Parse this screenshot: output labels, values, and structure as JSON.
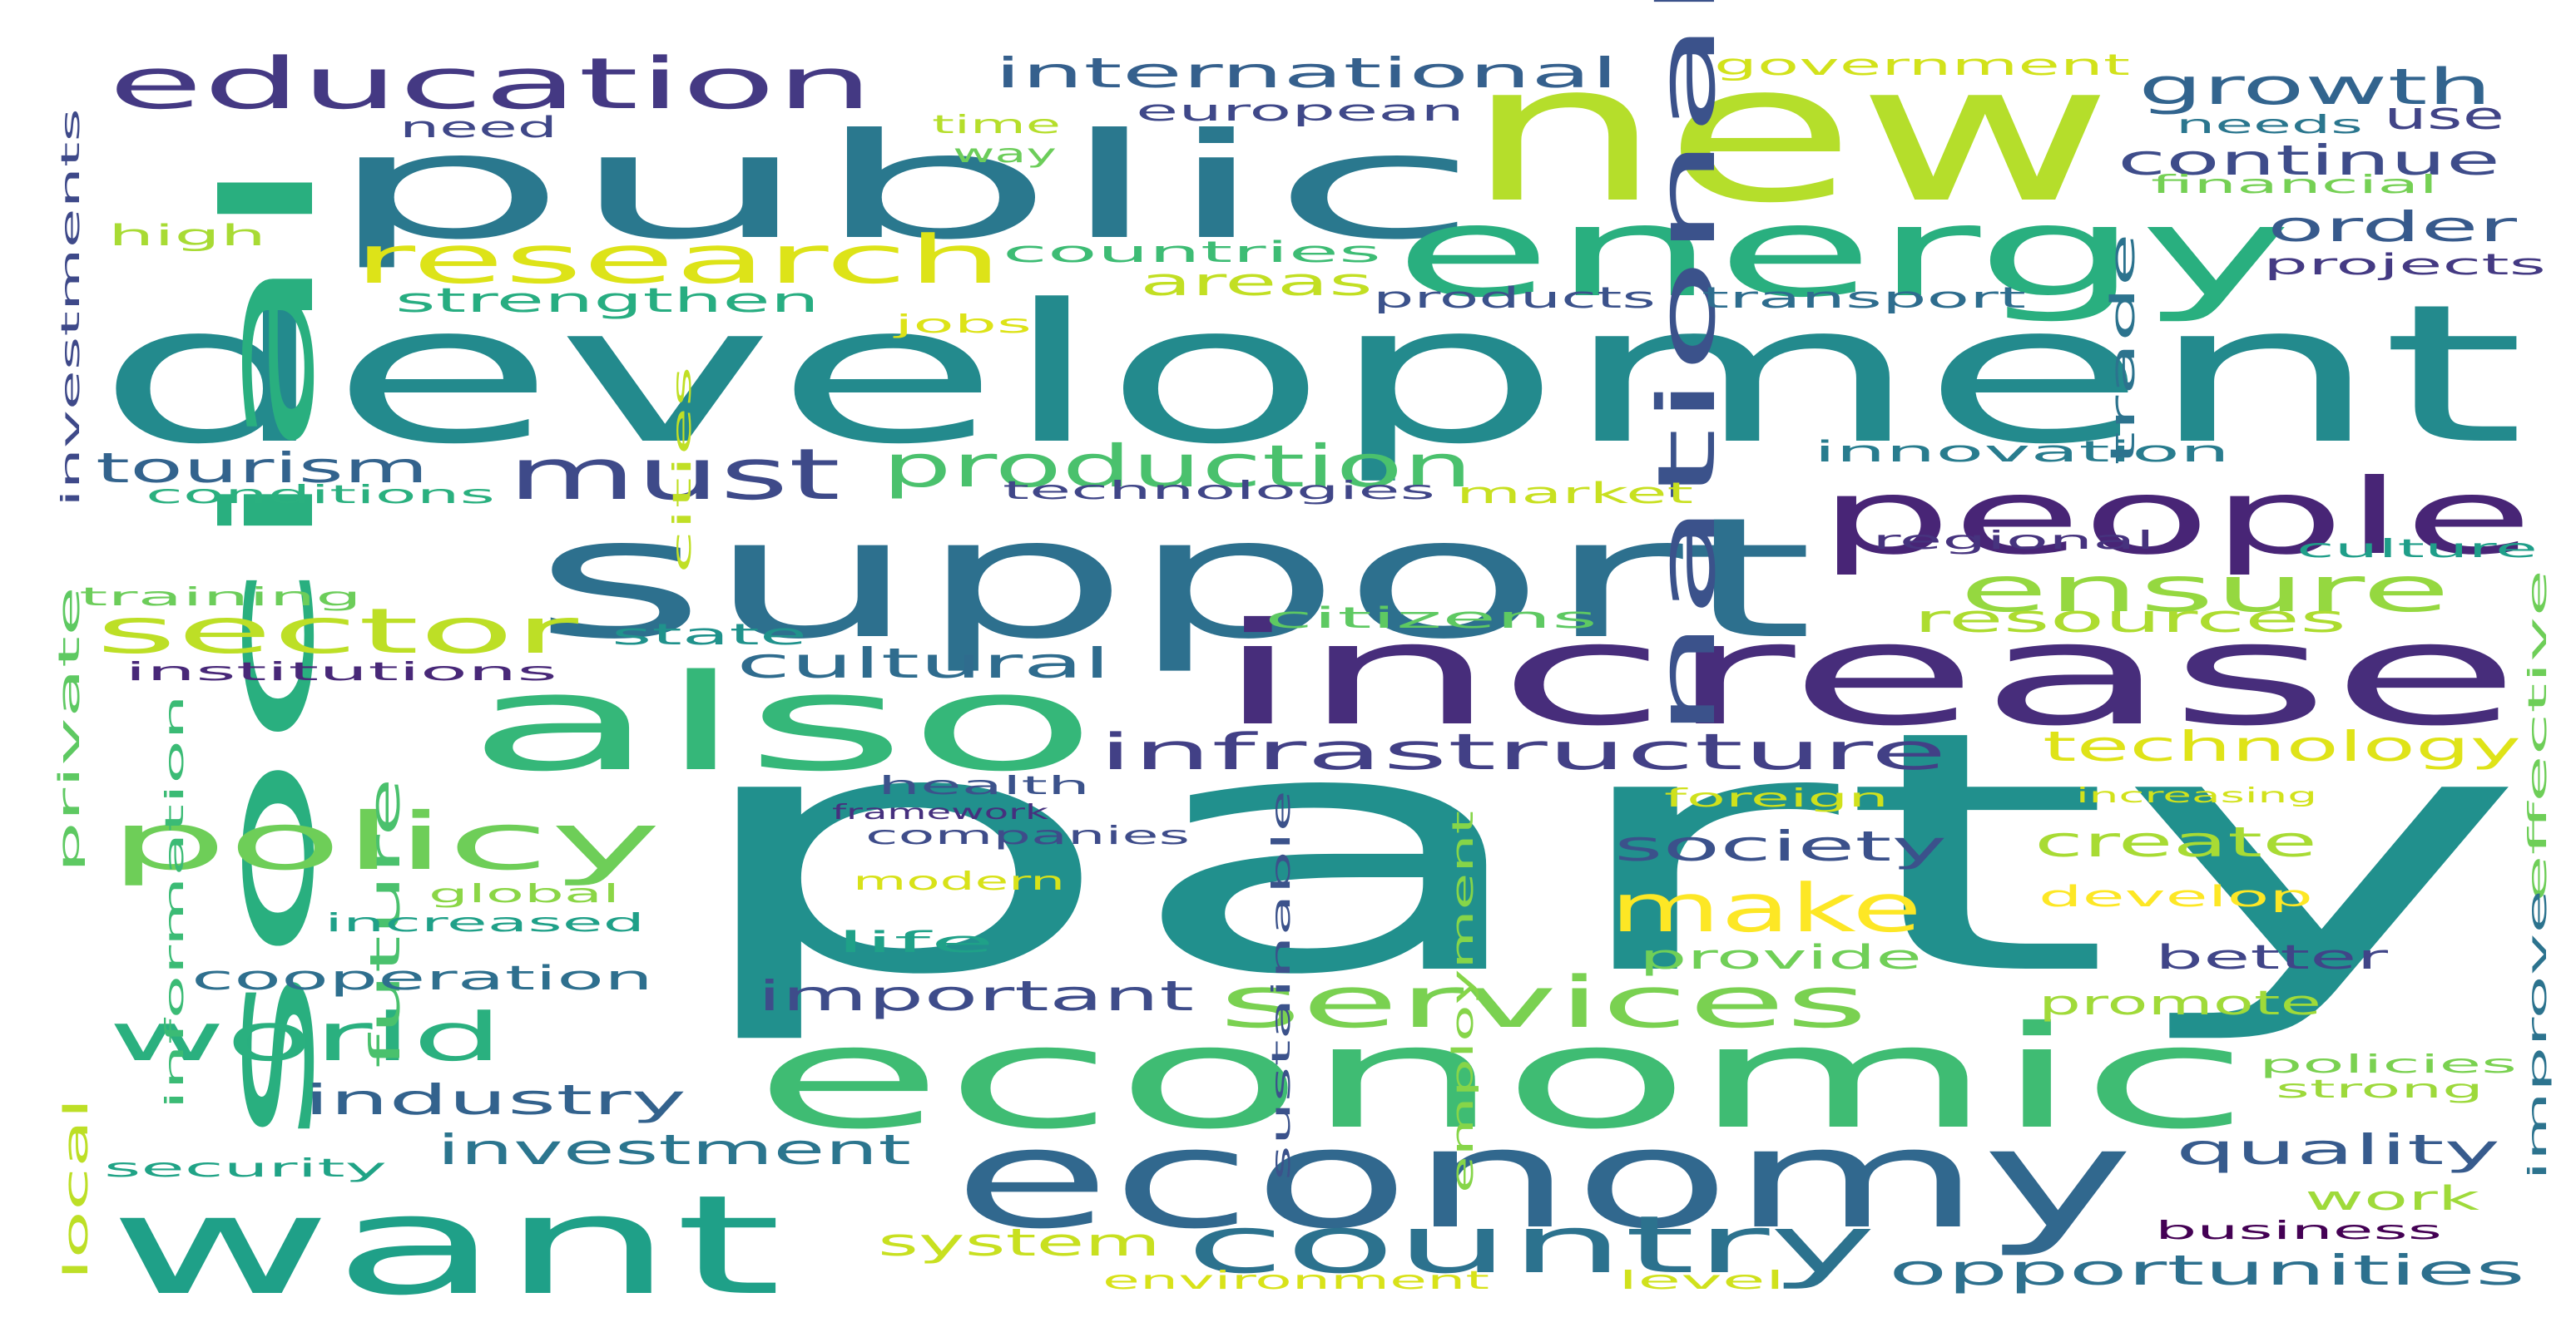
{
  "words": [
    {
      "text": "party",
      "color": "#21908d"
    },
    {
      "text": "development",
      "color": "#238a8d"
    },
    {
      "text": "support",
      "color": "#2d708e"
    },
    {
      "text": "new",
      "color": "#b5de2b"
    },
    {
      "text": "public",
      "color": "#2a788e"
    },
    {
      "text": "increase",
      "color": "#472d7b"
    },
    {
      "text": "economic",
      "color": "#3fbc73"
    },
    {
      "text": "energy",
      "color": "#29af7f"
    },
    {
      "text": "economy",
      "color": "#31688e"
    },
    {
      "text": "also",
      "color": "#35b779"
    },
    {
      "text": "social",
      "color": "#29af7f"
    },
    {
      "text": "want",
      "color": "#1fa088"
    },
    {
      "text": "people",
      "color": "#482576"
    },
    {
      "text": "national",
      "color": "#3b528b"
    },
    {
      "text": "country",
      "color": "#2c728e"
    },
    {
      "text": "education",
      "color": "#443983"
    },
    {
      "text": "research",
      "color": "#dde318"
    },
    {
      "text": "policy",
      "color": "#6ece58"
    },
    {
      "text": "services",
      "color": "#7ad151"
    },
    {
      "text": "must",
      "color": "#3e4a89"
    },
    {
      "text": "production",
      "color": "#4ac16d"
    },
    {
      "text": "ensure",
      "color": "#95d840"
    },
    {
      "text": "infrastructure",
      "color": "#424086"
    },
    {
      "text": "sector",
      "color": "#bddf26"
    },
    {
      "text": "world",
      "color": "#2ab07f"
    },
    {
      "text": "make",
      "color": "#fde725"
    },
    {
      "text": "growth",
      "color": "#32648e"
    },
    {
      "text": "international",
      "color": "#35608d"
    },
    {
      "text": "continue",
      "color": "#3e4c8a"
    },
    {
      "text": "order",
      "color": "#375a8c"
    },
    {
      "text": "technology",
      "color": "#dfe318"
    },
    {
      "text": "cultural",
      "color": "#2f6c8e"
    },
    {
      "text": "society",
      "color": "#3b518b"
    },
    {
      "text": "important",
      "color": "#3e4c8a"
    },
    {
      "text": "industry",
      "color": "#33628d"
    },
    {
      "text": "investment",
      "color": "#2b758e"
    },
    {
      "text": "quality",
      "color": "#375b8d"
    },
    {
      "text": "opportunities",
      "color": "#2d708e"
    },
    {
      "text": "tourism",
      "color": "#33638d"
    },
    {
      "text": "create",
      "color": "#a8db34"
    },
    {
      "text": "future",
      "color": "#4ac16d"
    },
    {
      "text": "resources",
      "color": "#addc30"
    },
    {
      "text": "areas",
      "color": "#c2df23"
    },
    {
      "text": "government",
      "color": "#d2e21b"
    },
    {
      "text": "use",
      "color": "#414487"
    },
    {
      "text": "european",
      "color": "#3f4889"
    },
    {
      "text": "system",
      "color": "#c8e020"
    },
    {
      "text": "work",
      "color": "#9fda3a"
    },
    {
      "text": "cooperation",
      "color": "#2e6f8e"
    },
    {
      "text": "employment",
      "color": "#86d549"
    },
    {
      "text": "develop",
      "color": "#fde725"
    },
    {
      "text": "better",
      "color": "#404588"
    },
    {
      "text": "provide",
      "color": "#70cf57"
    },
    {
      "text": "promote",
      "color": "#a0da39"
    },
    {
      "text": "strengthen",
      "color": "#27ad81"
    },
    {
      "text": "countries",
      "color": "#3dbc74"
    },
    {
      "text": "products",
      "color": "#3b528b"
    },
    {
      "text": "transport",
      "color": "#2e6d8e"
    },
    {
      "text": "innovation",
      "color": "#287c8e"
    },
    {
      "text": "trade",
      "color": "#2c738e"
    },
    {
      "text": "market",
      "color": "#c8e020"
    },
    {
      "text": "information",
      "color": "#3bbb75"
    },
    {
      "text": "private",
      "color": "#5ec962"
    },
    {
      "text": "local",
      "color": "#bddf26"
    },
    {
      "text": "state",
      "color": "#20928c"
    },
    {
      "text": "citizens",
      "color": "#5ec962"
    },
    {
      "text": "institutions",
      "color": "#482878"
    },
    {
      "text": "technologies",
      "color": "#404688"
    },
    {
      "text": "conditions",
      "color": "#2ab07f"
    },
    {
      "text": "training",
      "color": "#6ccd5a"
    },
    {
      "text": "investments",
      "color": "#3e4989"
    },
    {
      "text": "high",
      "color": "#a8db34"
    },
    {
      "text": "need",
      "color": "#3f4788"
    },
    {
      "text": "time",
      "color": "#b5de2b"
    },
    {
      "text": "way",
      "color": "#6ccd5a"
    },
    {
      "text": "needs",
      "color": "#2a768e"
    },
    {
      "text": "financial",
      "color": "#75d054"
    },
    {
      "text": "projects",
      "color": "#443a83"
    },
    {
      "text": "culture",
      "color": "#1f9e89"
    },
    {
      "text": "regional",
      "color": "#46337e"
    },
    {
      "text": "jobs",
      "color": "#dde318"
    },
    {
      "text": "cities",
      "color": "#c0df25"
    },
    {
      "text": "health",
      "color": "#3b528b"
    },
    {
      "text": "framework",
      "color": "#46307e"
    },
    {
      "text": "companies",
      "color": "#3e4c8a"
    },
    {
      "text": "global",
      "color": "#8bd646"
    },
    {
      "text": "increased",
      "color": "#1fa088"
    },
    {
      "text": "modern",
      "color": "#d8e219"
    },
    {
      "text": "life",
      "color": "#1fa188"
    },
    {
      "text": "foreign",
      "color": "#d0e11c"
    },
    {
      "text": "increasing",
      "color": "#d2e21b"
    },
    {
      "text": "effective",
      "color": "#6ece58"
    },
    {
      "text": "improve",
      "color": "#2c738e"
    },
    {
      "text": "policies",
      "color": "#7ad151"
    },
    {
      "text": "strong",
      "color": "#9dd93b"
    },
    {
      "text": "sustainable",
      "color": "#3b528b"
    },
    {
      "text": "security",
      "color": "#20a386"
    },
    {
      "text": "business",
      "color": "#440154"
    },
    {
      "text": "environment",
      "color": "#d8e219"
    },
    {
      "text": "level",
      "color": "#d0e11c"
    }
  ]
}
